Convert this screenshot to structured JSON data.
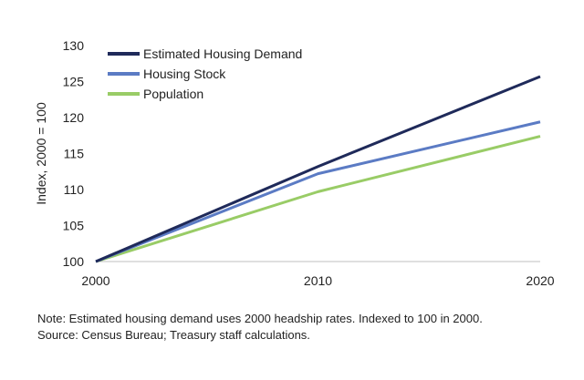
{
  "chart_data": {
    "type": "line",
    "title": "",
    "xlabel": "",
    "ylabel": "Index, 2000 = 100",
    "x": [
      2000,
      2010,
      2020
    ],
    "xticks": [
      "2000",
      "2010",
      "2020"
    ],
    "yticks": [
      "100",
      "105",
      "110",
      "115",
      "120",
      "125",
      "130"
    ],
    "ylim": [
      100,
      130
    ],
    "xlim": [
      2000,
      2020
    ],
    "grid": false,
    "legend_position": "top-left",
    "series": [
      {
        "name": "Estimated Housing Demand",
        "color": "#1f2a5a",
        "values": [
          100,
          113.2,
          125.7
        ]
      },
      {
        "name": "Housing Stock",
        "color": "#5b7bc4",
        "values": [
          100,
          112.2,
          119.4
        ]
      },
      {
        "name": "Population",
        "color": "#99cc66",
        "values": [
          100,
          109.7,
          117.4
        ]
      }
    ]
  },
  "notes": {
    "note": "Note: Estimated housing demand uses 2000 headship rates. Indexed to 100 in 2000.",
    "source": "Source: Census Bureau; Treasury staff calculations."
  }
}
